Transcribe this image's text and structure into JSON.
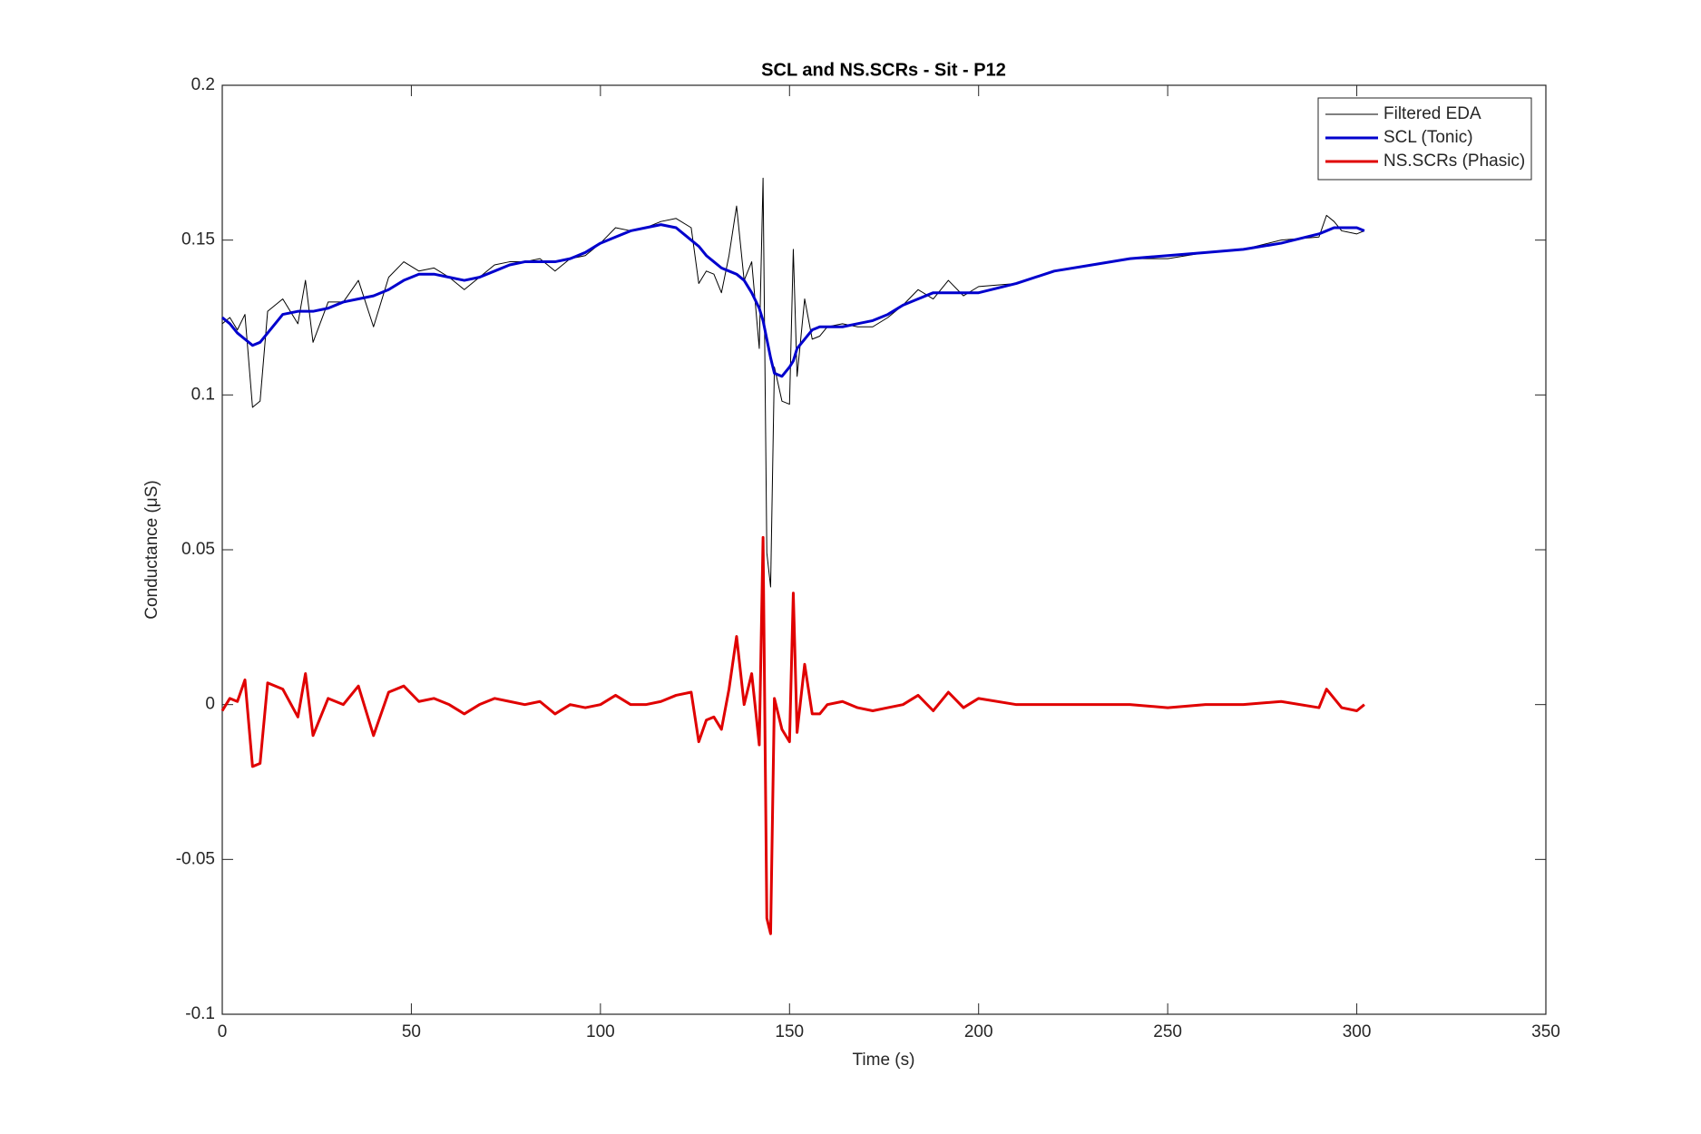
{
  "chart_data": {
    "type": "line",
    "title": "SCL and NS.SCRs - Sit - P12",
    "x_label": "Time (s)",
    "y_label": "Conductance (μS)",
    "xlim": [
      0,
      350
    ],
    "xticks": [
      0,
      50,
      100,
      150,
      200,
      250,
      300,
      350
    ],
    "ylim": [
      -0.1,
      0.2
    ],
    "yticks": [
      -0.1,
      -0.05,
      0,
      0.05,
      0.1,
      0.15,
      0.2
    ],
    "legend": "northeast",
    "x": [
      0,
      2,
      4,
      6,
      8,
      10,
      12,
      16,
      20,
      22,
      24,
      28,
      32,
      36,
      40,
      44,
      48,
      52,
      56,
      60,
      64,
      68,
      72,
      76,
      80,
      84,
      88,
      92,
      96,
      100,
      104,
      108,
      112,
      116,
      120,
      124,
      126,
      128,
      130,
      132,
      134,
      136,
      138,
      140,
      142,
      143,
      144,
      145,
      146,
      148,
      150,
      151,
      152,
      154,
      156,
      158,
      160,
      164,
      168,
      172,
      176,
      180,
      184,
      188,
      192,
      196,
      200,
      210,
      220,
      230,
      240,
      250,
      260,
      270,
      280,
      290,
      292,
      294,
      296,
      300,
      302
    ],
    "series": [
      {
        "name": "Filtered EDA",
        "color": "#000000",
        "width": 1,
        "values": [
          0.123,
          0.125,
          0.121,
          0.126,
          0.096,
          0.098,
          0.127,
          0.131,
          0.123,
          0.137,
          0.117,
          0.13,
          0.13,
          0.137,
          0.122,
          0.138,
          0.143,
          0.14,
          0.141,
          0.138,
          0.134,
          0.138,
          0.142,
          0.143,
          0.143,
          0.144,
          0.14,
          0.144,
          0.145,
          0.149,
          0.154,
          0.153,
          0.154,
          0.156,
          0.157,
          0.154,
          0.136,
          0.14,
          0.139,
          0.133,
          0.145,
          0.161,
          0.137,
          0.143,
          0.115,
          0.17,
          0.049,
          0.038,
          0.109,
          0.098,
          0.097,
          0.147,
          0.106,
          0.131,
          0.118,
          0.119,
          0.122,
          0.123,
          0.122,
          0.122,
          0.125,
          0.129,
          0.134,
          0.131,
          0.137,
          0.132,
          0.135,
          0.136,
          0.14,
          0.142,
          0.144,
          0.144,
          0.146,
          0.147,
          0.15,
          0.151,
          0.158,
          0.156,
          0.153,
          0.152,
          0.153
        ]
      },
      {
        "name": "SCL (Tonic)",
        "color": "#0000cd",
        "width": 3,
        "values": [
          0.125,
          0.123,
          0.12,
          0.118,
          0.116,
          0.117,
          0.12,
          0.126,
          0.127,
          0.127,
          0.127,
          0.128,
          0.13,
          0.131,
          0.132,
          0.134,
          0.137,
          0.139,
          0.139,
          0.138,
          0.137,
          0.138,
          0.14,
          0.142,
          0.143,
          0.143,
          0.143,
          0.144,
          0.146,
          0.149,
          0.151,
          0.153,
          0.154,
          0.155,
          0.154,
          0.15,
          0.148,
          0.145,
          0.143,
          0.141,
          0.14,
          0.139,
          0.137,
          0.133,
          0.128,
          0.124,
          0.118,
          0.112,
          0.107,
          0.106,
          0.109,
          0.111,
          0.115,
          0.118,
          0.121,
          0.122,
          0.122,
          0.122,
          0.123,
          0.124,
          0.126,
          0.129,
          0.131,
          0.133,
          0.133,
          0.133,
          0.133,
          0.136,
          0.14,
          0.142,
          0.144,
          0.145,
          0.146,
          0.147,
          0.149,
          0.152,
          0.153,
          0.154,
          0.154,
          0.154,
          0.153
        ]
      },
      {
        "name": "NS.SCRs (Phasic)",
        "color": "#e00000",
        "width": 3,
        "values": [
          -0.002,
          0.002,
          0.001,
          0.008,
          -0.02,
          -0.019,
          0.007,
          0.005,
          -0.004,
          0.01,
          -0.01,
          0.002,
          0,
          0.006,
          -0.01,
          0.004,
          0.006,
          0.001,
          0.002,
          0,
          -0.003,
          0,
          0.002,
          0.001,
          0,
          0.001,
          -0.003,
          0,
          -0.001,
          0,
          0.003,
          0,
          0,
          0.001,
          0.003,
          0.004,
          -0.012,
          -0.005,
          -0.004,
          -0.008,
          0.005,
          0.022,
          0,
          0.01,
          -0.013,
          0.054,
          -0.069,
          -0.074,
          0.002,
          -0.008,
          -0.012,
          0.036,
          -0.009,
          0.013,
          -0.003,
          -0.003,
          0,
          0.001,
          -0.001,
          -0.002,
          -0.001,
          0,
          0.003,
          -0.002,
          0.004,
          -0.001,
          0.002,
          0,
          0,
          0,
          0,
          -0.001,
          0,
          0,
          0.001,
          -0.001,
          0.005,
          0.002,
          -0.001,
          -0.002,
          0
        ]
      }
    ]
  }
}
